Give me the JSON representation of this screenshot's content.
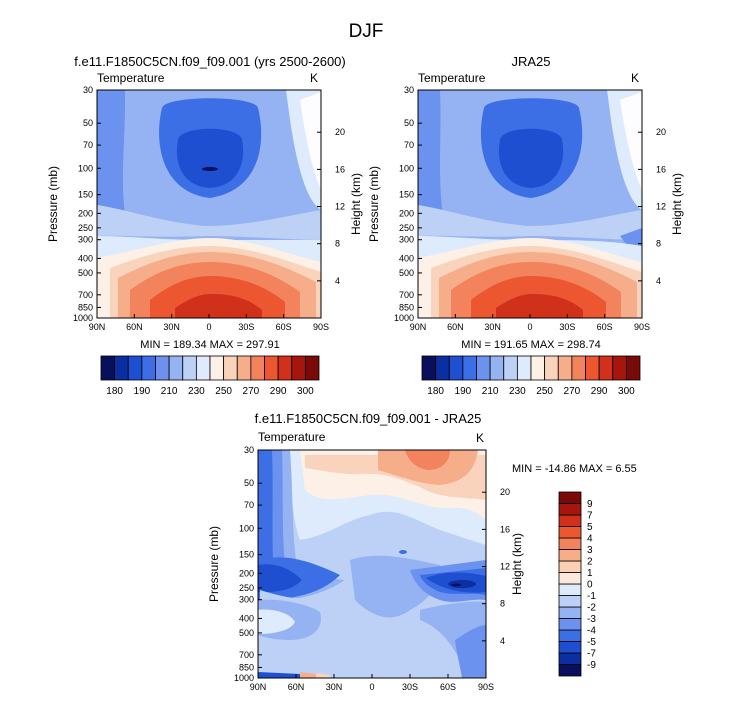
{
  "figure_title": "DJF",
  "colors": {
    "abs_palette": [
      "#08105e",
      "#0b2fa0",
      "#1f4fd1",
      "#3c6fe6",
      "#6a92ee",
      "#95b3f2",
      "#bdd1f7",
      "#deebfc",
      "#fdf0e6",
      "#fad3bd",
      "#f6ad8a",
      "#f2835c",
      "#ec5630",
      "#d1301a",
      "#a6150e",
      "#7a0a07"
    ],
    "diff_palette": [
      "#08105e",
      "#0b2fa0",
      "#1f4fd1",
      "#3c6fe6",
      "#6a92ee",
      "#95b3f2",
      "#bdd1f7",
      "#deebfc",
      "#fde8dc",
      "#fbd0b5",
      "#f6ad8a",
      "#f2835c",
      "#ec5630",
      "#d1301a",
      "#a6150e",
      "#7a0a07"
    ]
  },
  "chart_data": [
    {
      "type": "contour",
      "title": "f.e11.F1850C5CN.f09_f09.001 (yrs 2500-2600)",
      "variable": "Temperature",
      "units": "K",
      "xlabel": "",
      "ylabel": "Pressure (mb)",
      "ylabel_right": "Height (km)",
      "x_ticks": [
        "90N",
        "60N",
        "30N",
        "0",
        "30S",
        "60S",
        "90S"
      ],
      "x_values": [
        90,
        60,
        30,
        0,
        -30,
        -60,
        -90
      ],
      "pressure_ticks": [
        30,
        50,
        70,
        100,
        150,
        200,
        250,
        300,
        400,
        500,
        700,
        850,
        1000
      ],
      "height_ticks": [
        20,
        16,
        12,
        8,
        4
      ],
      "pressure_range": [
        30,
        1000
      ],
      "min": 189.34,
      "max": 297.91,
      "stats": "MIN = 189.34   MAX = 297.91",
      "colorbar_levels": [
        175,
        180,
        185,
        190,
        200,
        210,
        220,
        230,
        240,
        250,
        260,
        270,
        280,
        290,
        295,
        300
      ],
      "colorbar_labels": [
        "180",
        "190",
        "210",
        "230",
        "250",
        "270",
        "290",
        "300"
      ]
    },
    {
      "type": "contour",
      "title": "JRA25",
      "variable": "Temperature",
      "units": "K",
      "xlabel": "",
      "ylabel": "Pressure (mb)",
      "ylabel_right": "Height (km)",
      "x_ticks": [
        "90N",
        "60N",
        "30N",
        "0",
        "30S",
        "60S",
        "90S"
      ],
      "x_values": [
        90,
        60,
        30,
        0,
        -30,
        -60,
        -90
      ],
      "pressure_ticks": [
        30,
        50,
        70,
        100,
        150,
        200,
        250,
        300,
        400,
        500,
        700,
        850,
        1000
      ],
      "height_ticks": [
        20,
        16,
        12,
        8,
        4
      ],
      "pressure_range": [
        30,
        1000
      ],
      "min": 191.65,
      "max": 298.74,
      "stats": "MIN = 191.65   MAX = 298.74",
      "colorbar_levels": [
        175,
        180,
        185,
        190,
        200,
        210,
        220,
        230,
        240,
        250,
        260,
        270,
        280,
        290,
        295,
        300
      ],
      "colorbar_labels": [
        "180",
        "190",
        "210",
        "230",
        "250",
        "270",
        "290",
        "300"
      ]
    },
    {
      "type": "contour",
      "title": "f.e11.F1850C5CN.f09_f09.001 - JRA25",
      "variable": "Temperature",
      "units": "K",
      "xlabel": "",
      "ylabel": "Pressure (mb)",
      "ylabel_right": "Height (km)",
      "x_ticks": [
        "90N",
        "60N",
        "30N",
        "0",
        "30S",
        "60S",
        "90S"
      ],
      "x_values": [
        90,
        60,
        30,
        0,
        -30,
        -60,
        -90
      ],
      "pressure_ticks": [
        30,
        50,
        70,
        100,
        150,
        200,
        250,
        300,
        400,
        500,
        700,
        850,
        1000
      ],
      "height_ticks": [
        20,
        16,
        12,
        8,
        4
      ],
      "pressure_range": [
        30,
        1000
      ],
      "min": -14.86,
      "max": 6.55,
      "stats": "MIN = -14.86  MAX =   6.55",
      "colorbar_levels": [
        -9,
        -7,
        -5,
        -4,
        -3,
        -2,
        -1,
        0,
        1,
        2,
        3,
        4,
        5,
        7,
        9
      ],
      "colorbar_labels": [
        "-9",
        "-7",
        "-5",
        "-4",
        "-3",
        "-2",
        "-1",
        "0",
        "1",
        "2",
        "3",
        "4",
        "5",
        "7",
        "9"
      ]
    }
  ]
}
